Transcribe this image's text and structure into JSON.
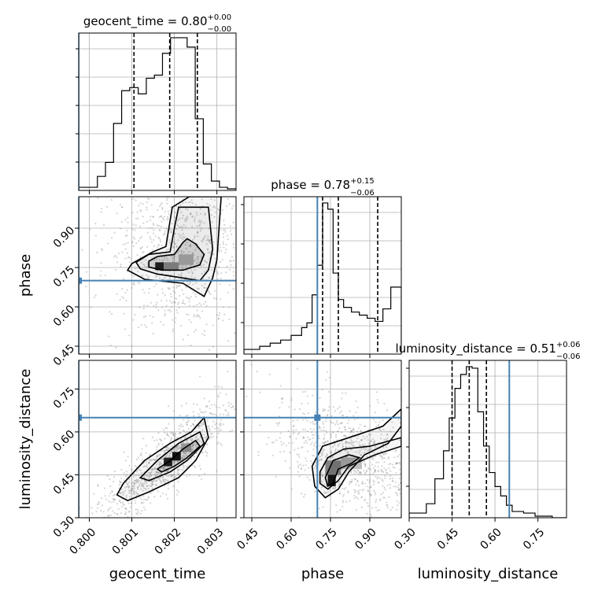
{
  "colors": {
    "truth": "#4682b4",
    "hist": "#000000",
    "grid": "#b0b0b0",
    "scatter": "#888888"
  },
  "chart_data": {
    "type": "corner",
    "parameters": [
      "geocent_time",
      "phase",
      "luminosity_distance"
    ],
    "truths": {
      "geocent_time": 0.79975,
      "phase": 0.7,
      "luminosity_distance": 0.65
    },
    "limits": {
      "geocent_time": [
        0.79975,
        0.80345
      ],
      "phase": [
        0.42,
        1.02
      ],
      "luminosity_distance": [
        0.3,
        0.85
      ]
    },
    "ticks": {
      "geocent_time": [
        "0.800",
        "0.801",
        "0.802",
        "0.803"
      ],
      "phase": [
        "0.45",
        "0.60",
        "0.75",
        "0.90"
      ],
      "luminosity_distance": [
        "0.30",
        "0.45",
        "0.60",
        "0.75"
      ]
    },
    "titles": {
      "geocent_time": {
        "name": "geocent_time",
        "value": "0.80",
        "plus": "+0.00",
        "minus": "−0.00"
      },
      "phase": {
        "name": "phase",
        "value": "0.78",
        "plus": "+0.15",
        "minus": "−0.06"
      },
      "luminosity_distance": {
        "name": "luminosity_distance",
        "value": "0.51",
        "plus": "+0.06",
        "minus": "−0.06"
      }
    },
    "histograms": {
      "geocent_time": {
        "edges": [
          0.79975,
          0.80019,
          0.80038,
          0.80057,
          0.80076,
          0.80095,
          0.80115,
          0.80134,
          0.80153,
          0.80172,
          0.80191,
          0.8021,
          0.8023,
          0.80249,
          0.80268,
          0.80287,
          0.80306,
          0.80325,
          0.80345
        ],
        "counts": [
          0.02,
          0.09,
          0.18,
          0.43,
          0.64,
          0.66,
          0.62,
          0.72,
          0.74,
          0.88,
          0.98,
          0.98,
          0.92,
          0.46,
          0.17,
          0.06,
          0.02,
          0.01
        ],
        "quantiles": [
          0.80105,
          0.80189,
          0.80254
        ]
      },
      "phase": {
        "edges": [
          0.42,
          0.48,
          0.52,
          0.56,
          0.6,
          0.64,
          0.66,
          0.68,
          0.7,
          0.72,
          0.74,
          0.76,
          0.78,
          0.8,
          0.83,
          0.86,
          0.89,
          0.92,
          0.95,
          0.98,
          1.02
        ],
        "counts": [
          0.03,
          0.05,
          0.07,
          0.09,
          0.12,
          0.17,
          0.2,
          0.38,
          0.57,
          0.97,
          0.93,
          0.52,
          0.35,
          0.3,
          0.27,
          0.25,
          0.23,
          0.21,
          0.29,
          0.43
        ],
        "quantiles": [
          0.72,
          0.78,
          0.93
        ]
      },
      "luminosity_distance": {
        "edges": [
          0.3,
          0.36,
          0.39,
          0.42,
          0.44,
          0.46,
          0.48,
          0.5,
          0.52,
          0.54,
          0.56,
          0.58,
          0.6,
          0.62,
          0.64,
          0.66,
          0.7,
          0.74,
          0.8,
          0.85
        ],
        "counts": [
          0.03,
          0.09,
          0.25,
          0.43,
          0.64,
          0.83,
          0.92,
          0.97,
          0.96,
          0.68,
          0.46,
          0.29,
          0.2,
          0.14,
          0.08,
          0.04,
          0.03,
          0.01,
          0.0
        ],
        "quantiles": [
          0.45,
          0.51,
          0.57
        ]
      }
    },
    "joint": {
      "phase_vs_geocent_time": {
        "pdf_boxes": [
          {
            "x": [
              0.80155,
              0.80175
            ],
            "y": [
              0.74,
              0.77
            ],
            "density": 0.85
          },
          {
            "x": [
              0.80175,
              0.8021
            ],
            "y": [
              0.74,
              0.77
            ],
            "density": 0.4
          },
          {
            "x": [
              0.8021,
              0.80245
            ],
            "y": [
              0.76,
              0.8
            ],
            "density": 0.25
          }
        ],
        "contours": [
          [
            [
              0.8014,
              0.774
            ],
            [
              0.8016,
              0.792
            ],
            [
              0.802,
              0.8
            ],
            [
              0.8022,
              0.845
            ],
            [
              0.8023,
              0.86
            ],
            [
              0.8025,
              0.84
            ],
            [
              0.8027,
              0.8
            ],
            [
              0.8026,
              0.76
            ],
            [
              0.8022,
              0.74
            ],
            [
              0.8017,
              0.74
            ],
            [
              0.8014,
              0.752
            ],
            [
              0.8014,
              0.774
            ]
          ],
          [
            [
              0.8011,
              0.77
            ],
            [
              0.8014,
              0.8
            ],
            [
              0.8019,
              0.81
            ],
            [
              0.802,
              0.9
            ],
            [
              0.8021,
              0.98
            ],
            [
              0.8028,
              0.98
            ],
            [
              0.80285,
              0.9
            ],
            [
              0.8029,
              0.82
            ],
            [
              0.8028,
              0.74
            ],
            [
              0.8026,
              0.7
            ],
            [
              0.8022,
              0.71
            ],
            [
              0.8016,
              0.725
            ],
            [
              0.8012,
              0.745
            ],
            [
              0.8011,
              0.77
            ]
          ],
          [
            [
              0.801,
              0.765
            ],
            [
              0.8015,
              0.81
            ],
            [
              0.8018,
              0.83
            ],
            [
              0.80195,
              0.98
            ],
            [
              0.80235,
              1.02
            ],
            [
              0.8031,
              1.02
            ],
            [
              0.80305,
              0.9
            ],
            [
              0.803,
              0.78
            ],
            [
              0.8029,
              0.71
            ],
            [
              0.8027,
              0.64
            ],
            [
              0.8022,
              0.69
            ],
            [
              0.8013,
              0.705
            ],
            [
              0.8009,
              0.74
            ],
            [
              0.801,
              0.765
            ]
          ]
        ],
        "scatter_seed": 3
      },
      "luminosity_distance_vs_geocent_time": {
        "pdf_boxes": [
          {
            "x": [
              0.80175,
              0.80195
            ],
            "y": [
              0.48,
              0.51
            ],
            "density": 0.85
          },
          {
            "x": [
              0.80195,
              0.80215
            ],
            "y": [
              0.5,
              0.53
            ],
            "density": 0.9
          },
          {
            "x": [
              0.80215,
              0.8024
            ],
            "y": [
              0.53,
              0.56
            ],
            "density": 0.35
          }
        ],
        "contours": [
          [
            [
              0.8016,
              0.47
            ],
            [
              0.8019,
              0.5
            ],
            [
              0.8022,
              0.54
            ],
            [
              0.8025,
              0.57
            ],
            [
              0.8026,
              0.55
            ],
            [
              0.8023,
              0.51
            ],
            [
              0.802,
              0.48
            ],
            [
              0.8017,
              0.46
            ],
            [
              0.8016,
              0.47
            ]
          ],
          [
            [
              0.8012,
              0.44
            ],
            [
              0.8016,
              0.5
            ],
            [
              0.8021,
              0.56
            ],
            [
              0.8026,
              0.6
            ],
            [
              0.8027,
              0.56
            ],
            [
              0.8023,
              0.5
            ],
            [
              0.8019,
              0.46
            ],
            [
              0.8014,
              0.43
            ],
            [
              0.8012,
              0.44
            ]
          ],
          [
            [
              0.80065,
              0.38
            ],
            [
              0.8008,
              0.42
            ],
            [
              0.8013,
              0.5
            ],
            [
              0.8019,
              0.56
            ],
            [
              0.8024,
              0.6
            ],
            [
              0.8027,
              0.65
            ],
            [
              0.8028,
              0.58
            ],
            [
              0.8025,
              0.5
            ],
            [
              0.8021,
              0.44
            ],
            [
              0.8014,
              0.39
            ],
            [
              0.8009,
              0.36
            ],
            [
              0.80065,
              0.38
            ]
          ]
        ],
        "scatter_seed": 7
      },
      "luminosity_distance_vs_phase": {
        "pdf_boxes": [
          {
            "x": [
              0.74,
              0.77
            ],
            "y": [
              0.41,
              0.45
            ],
            "density": 0.9
          },
          {
            "x": [
              0.73,
              0.79
            ],
            "y": [
              0.45,
              0.5
            ],
            "density": 0.45
          },
          {
            "x": [
              0.79,
              0.87
            ],
            "y": [
              0.47,
              0.51
            ],
            "density": 0.25
          }
        ],
        "contours": [
          [
            [
              0.73,
              0.44
            ],
            [
              0.76,
              0.5
            ],
            [
              0.82,
              0.52
            ],
            [
              0.86,
              0.51
            ],
            [
              0.83,
              0.49
            ],
            [
              0.78,
              0.47
            ],
            [
              0.76,
              0.42
            ],
            [
              0.74,
              0.41
            ],
            [
              0.73,
              0.44
            ]
          ],
          [
            [
              0.71,
              0.46
            ],
            [
              0.74,
              0.51
            ],
            [
              0.8,
              0.54
            ],
            [
              0.9,
              0.55
            ],
            [
              1.02,
              0.58
            ],
            [
              1.02,
              0.55
            ],
            [
              0.92,
              0.52
            ],
            [
              0.82,
              0.48
            ],
            [
              0.78,
              0.43
            ],
            [
              0.74,
              0.4
            ],
            [
              0.71,
              0.42
            ],
            [
              0.71,
              0.46
            ]
          ],
          [
            [
              0.68,
              0.48
            ],
            [
              0.72,
              0.55
            ],
            [
              0.82,
              0.58
            ],
            [
              0.95,
              0.62
            ],
            [
              1.02,
              0.68
            ],
            [
              1.02,
              0.62
            ],
            [
              0.97,
              0.56
            ],
            [
              0.88,
              0.52
            ],
            [
              0.82,
              0.46
            ],
            [
              0.78,
              0.4
            ],
            [
              0.73,
              0.37
            ],
            [
              0.69,
              0.41
            ],
            [
              0.68,
              0.48
            ]
          ]
        ],
        "scatter_seed": 11
      }
    },
    "grid": true
  }
}
